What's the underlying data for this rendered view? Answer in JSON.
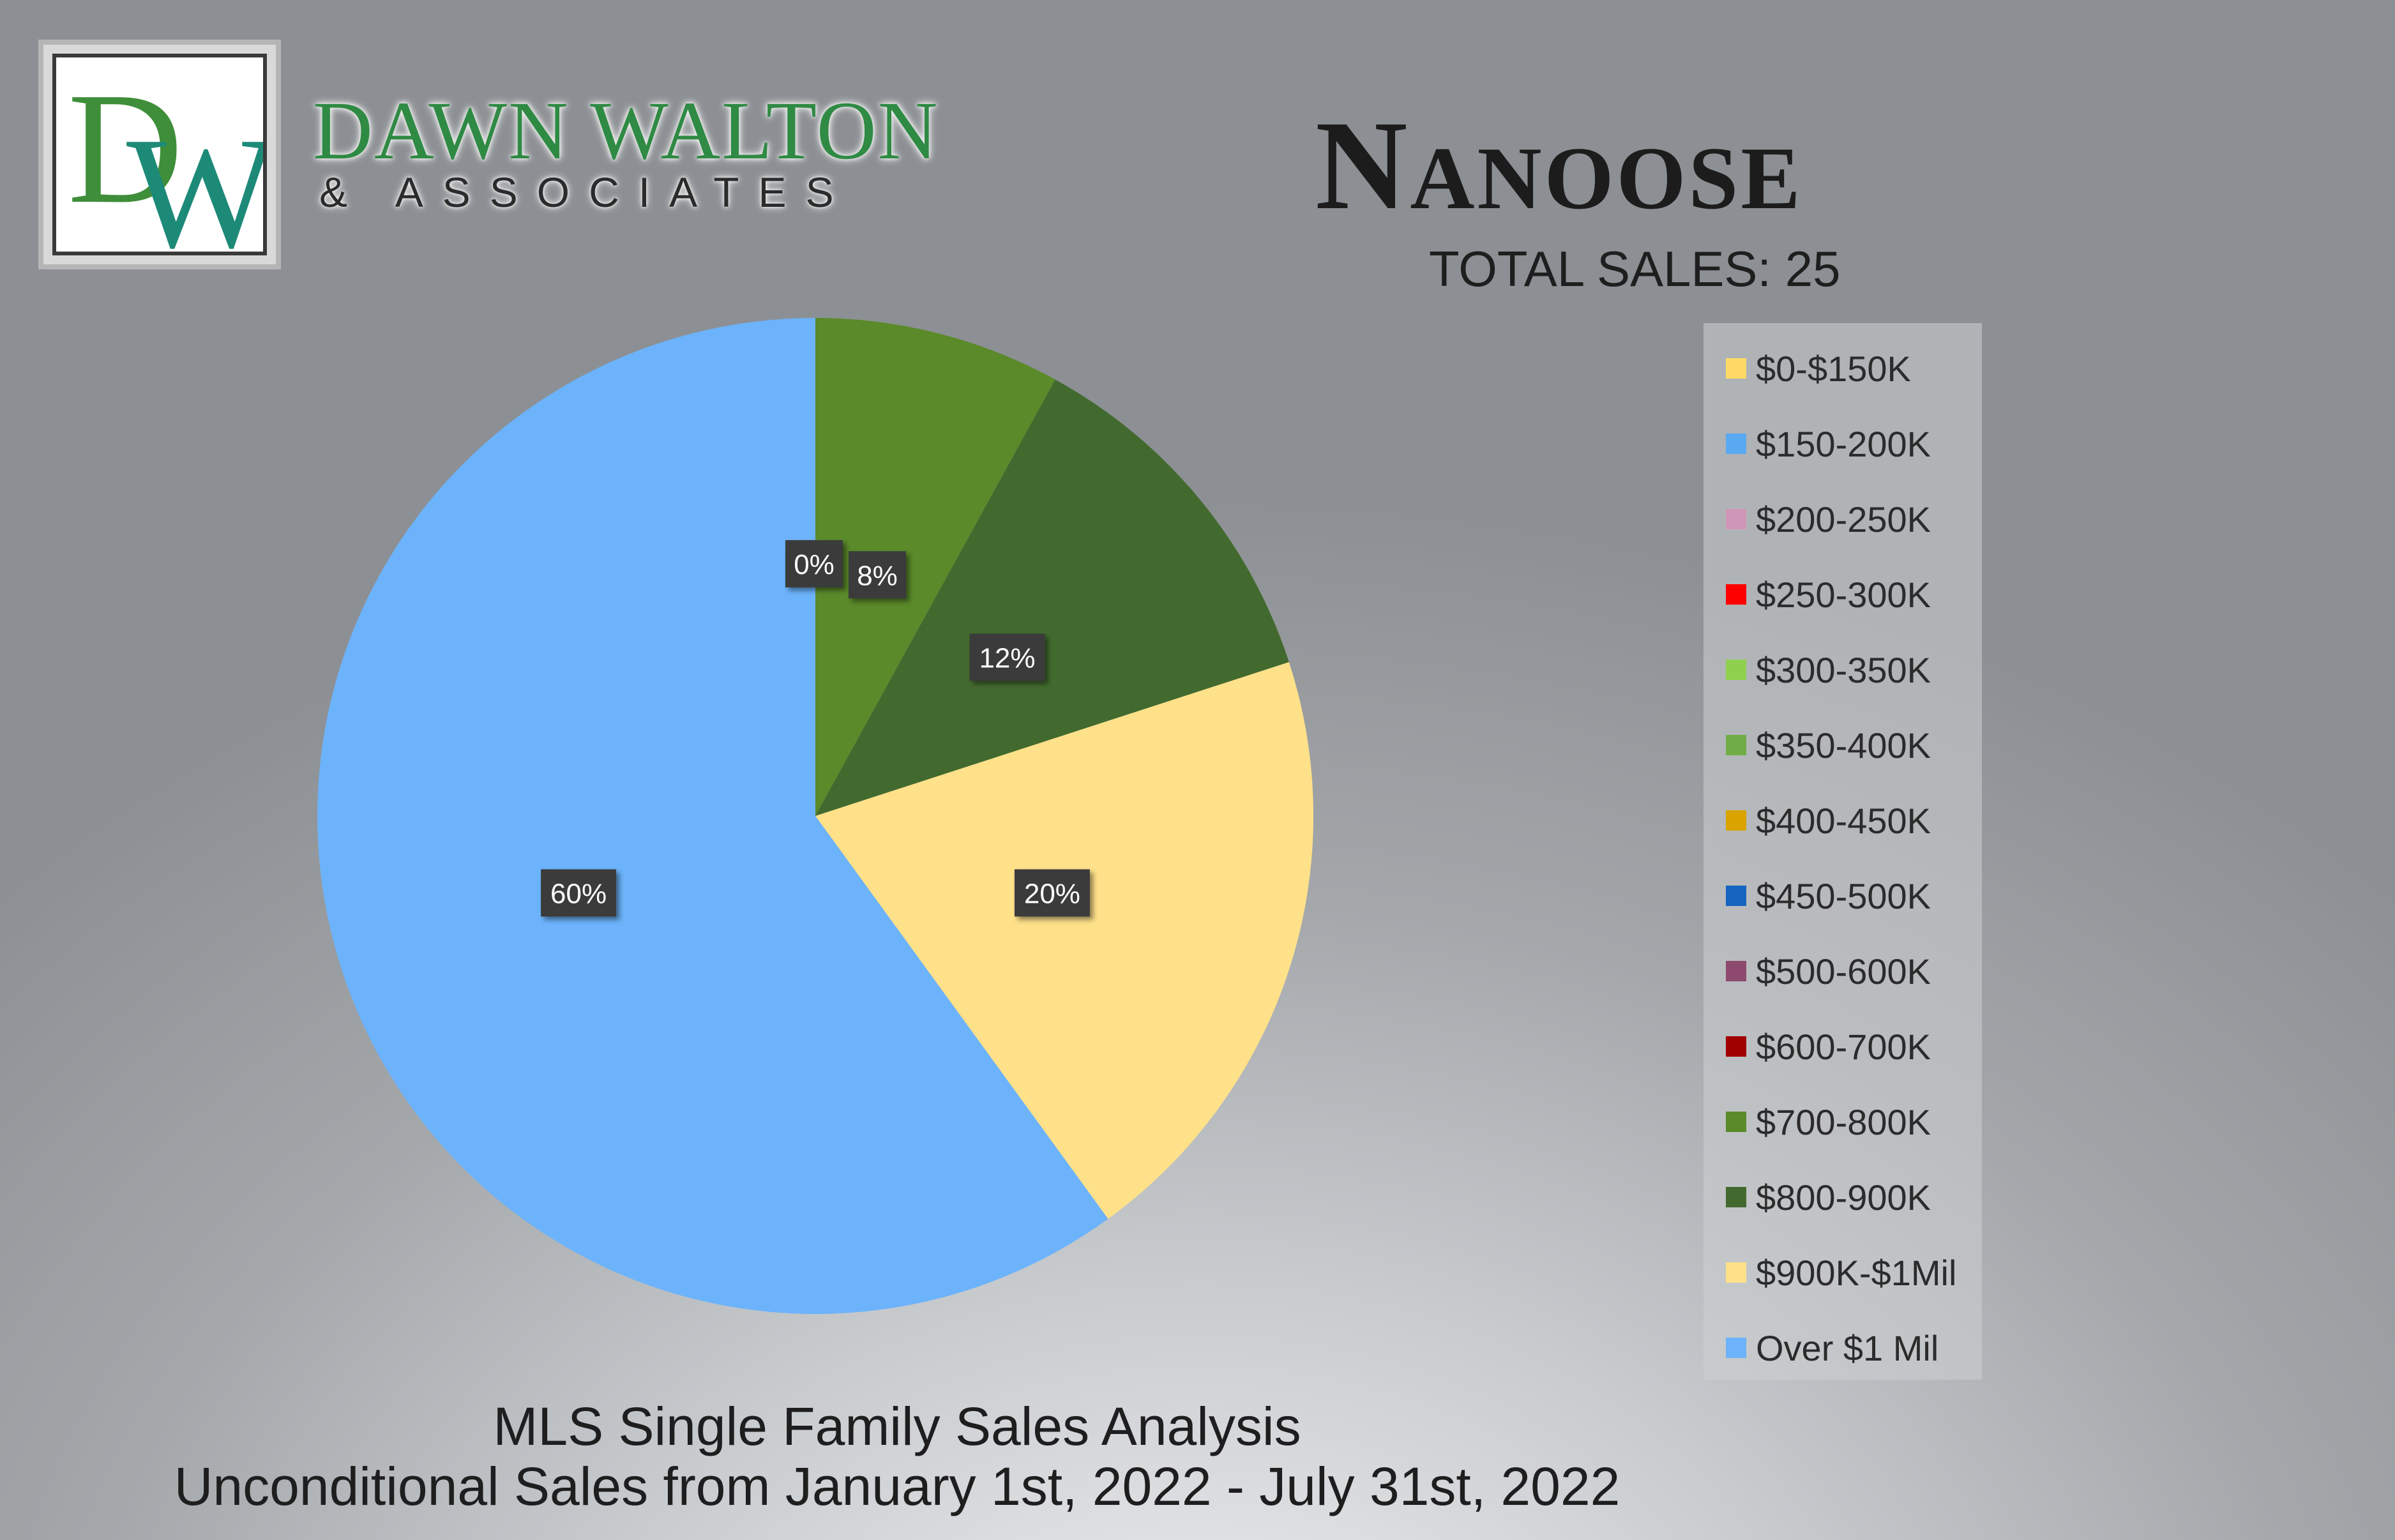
{
  "logo": {
    "letter_d": "D",
    "letter_w": "W",
    "name": "DAWN WALTON",
    "sub": "& ASSOCIATES"
  },
  "title": "Nanoose",
  "subtitle": "TOTAL SALES: 25",
  "footer": {
    "line1": "MLS Single Family Sales Analysis",
    "line2": "Unconditional Sales from January 1st, 2022 - July 31st, 2022"
  },
  "chart_data": {
    "type": "pie",
    "title": "Nanoose",
    "start_angle": "12 o'clock, clockwise",
    "legend_position": "right",
    "slices": [
      {
        "label": "$0-$150K",
        "value": 0,
        "color": "#ffd966",
        "data_label": ""
      },
      {
        "label": "$150-200K",
        "value": 0,
        "color": "#5aa9f0",
        "data_label": ""
      },
      {
        "label": "$200-250K",
        "value": 0,
        "color": "#d096b8",
        "data_label": ""
      },
      {
        "label": "$250-300K",
        "value": 0,
        "color": "#ff0000",
        "data_label": ""
      },
      {
        "label": "$300-350K",
        "value": 0,
        "color": "#8fd14f",
        "data_label": ""
      },
      {
        "label": "$350-400K",
        "value": 0,
        "color": "#70ad47",
        "data_label": ""
      },
      {
        "label": "$400-450K",
        "value": 0,
        "color": "#d9a300",
        "data_label": ""
      },
      {
        "label": "$450-500K",
        "value": 0,
        "color": "#1565c0",
        "data_label": ""
      },
      {
        "label": "$500-600K",
        "value": 0,
        "color": "#8e4a6e",
        "data_label": ""
      },
      {
        "label": "$600-700K",
        "value": 0,
        "color": "#a00000",
        "data_label": "0%"
      },
      {
        "label": "$700-800K",
        "value": 8,
        "color": "#5a8a2a",
        "data_label": "8%"
      },
      {
        "label": "$800-900K",
        "value": 12,
        "color": "#426a2e",
        "data_label": "12%"
      },
      {
        "label": "$900K-$1Mil",
        "value": 20,
        "color": "#ffe18a",
        "data_label": "20%"
      },
      {
        "label": "Over $1 Mil",
        "value": 60,
        "color": "#6cb3fb",
        "data_label": "60%"
      }
    ]
  }
}
